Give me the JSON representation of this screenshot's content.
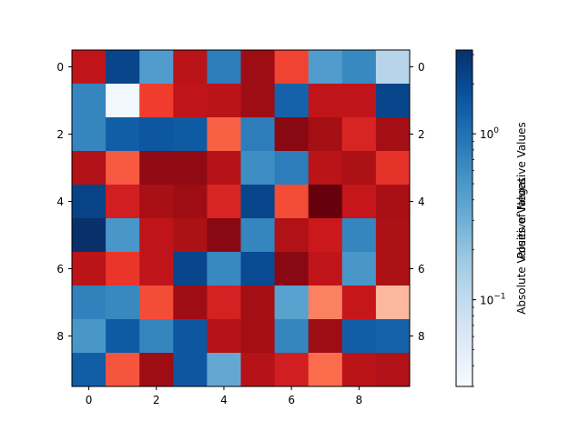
{
  "chart_data": {
    "type": "heatmap",
    "title": "",
    "xlabel": "",
    "ylabel": "",
    "rows": 10,
    "cols": 10,
    "x_ticks": [
      0,
      2,
      4,
      6,
      8
    ],
    "y_ticks": [
      0,
      2,
      4,
      6,
      8
    ],
    "positive_cmap": "Reds",
    "negative_cmap": "Blues",
    "colorbar": {
      "scale": "log",
      "range": [
        0.03,
        3.2
      ],
      "tick_labels": [
        {
          "value": 1,
          "base": "10",
          "exp": "0"
        },
        {
          "value": 0.1,
          "base": "10",
          "exp": "−1"
        }
      ],
      "labels": [
        "Positive Values",
        "Absolute Values of Negative Values"
      ]
    },
    "values": [
      [
        1.2,
        -2.2,
        -0.45,
        1.3,
        -0.8,
        1.9,
        0.5,
        -0.45,
        -0.65,
        -0.12
      ],
      [
        -0.7,
        -0.035,
        0.55,
        1.2,
        1.3,
        1.9,
        -1.3,
        1.2,
        1.2,
        -2.2
      ],
      [
        -0.7,
        -1.4,
        -1.6,
        -1.5,
        0.35,
        -0.8,
        2.3,
        1.8,
        0.8,
        1.8
      ],
      [
        1.5,
        0.38,
        2.2,
        2.2,
        1.4,
        -0.6,
        -0.8,
        1.3,
        1.6,
        0.65
      ],
      [
        -2.3,
        0.9,
        1.7,
        1.9,
        0.8,
        -2.2,
        0.45,
        3.2,
        1.1,
        1.7
      ],
      [
        -3.2,
        -0.5,
        1.2,
        1.6,
        2.3,
        -0.7,
        1.5,
        1.0,
        -0.7,
        1.6
      ],
      [
        1.3,
        0.6,
        1.2,
        -2.2,
        -0.65,
        -2.0,
        2.3,
        1.2,
        -0.5,
        1.6
      ],
      [
        -0.75,
        -0.65,
        0.45,
        1.9,
        0.85,
        1.8,
        -0.4,
        0.22,
        1.1,
        0.1
      ],
      [
        -0.5,
        -1.5,
        -0.7,
        -1.6,
        1.4,
        1.8,
        -0.7,
        1.9,
        -1.4,
        -1.3
      ],
      [
        -1.4,
        0.4,
        1.9,
        -1.6,
        -0.35,
        1.4,
        0.9,
        0.3,
        1.3,
        1.5
      ]
    ]
  }
}
